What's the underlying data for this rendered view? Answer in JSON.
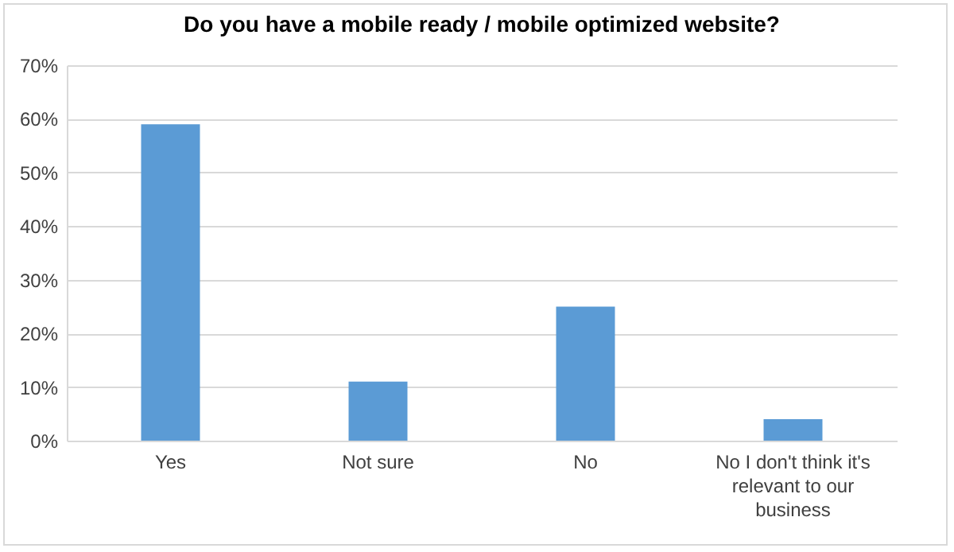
{
  "chart_data": {
    "type": "bar",
    "title": "Do you have a mobile ready / mobile optimized website?",
    "categories": [
      "Yes",
      "Not sure",
      "No",
      "No I don't think it's relevant to our business"
    ],
    "values": [
      59,
      11,
      25,
      4
    ],
    "color": "#5b9bd5",
    "ylim": [
      0,
      70
    ],
    "yticks": [
      {
        "value": 0,
        "label": "0%"
      },
      {
        "value": 10,
        "label": "10%"
      },
      {
        "value": 20,
        "label": "20%"
      },
      {
        "value": 30,
        "label": "30%"
      },
      {
        "value": 40,
        "label": "40%"
      },
      {
        "value": 50,
        "label": "50%"
      },
      {
        "value": 60,
        "label": "60%"
      },
      {
        "value": 70,
        "label": "70%"
      }
    ],
    "grid": "y"
  }
}
